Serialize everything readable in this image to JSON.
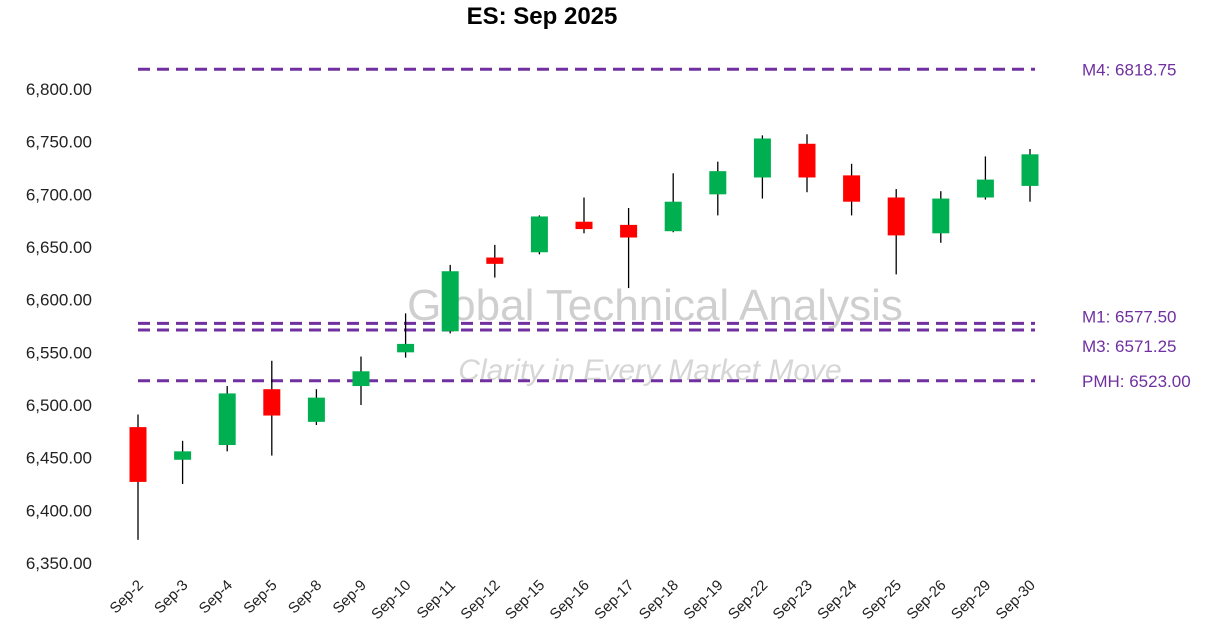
{
  "chart_data": {
    "type": "candlestick",
    "title": "ES: Sep 2025",
    "ylim": [
      6350,
      6830
    ],
    "yticks": [
      6350,
      6400,
      6450,
      6500,
      6550,
      6600,
      6650,
      6700,
      6750,
      6800
    ],
    "ytick_labels": [
      "6,350.00",
      "6,400.00",
      "6,450.00",
      "6,500.00",
      "6,550.00",
      "6,600.00",
      "6,650.00",
      "6,700.00",
      "6,750.00",
      "6,800.00"
    ],
    "grid": false,
    "categories": [
      "Sep-2",
      "Sep-3",
      "Sep-4",
      "Sep-5",
      "Sep-8",
      "Sep-9",
      "Sep-10",
      "Sep-11",
      "Sep-12",
      "Sep-15",
      "Sep-16",
      "Sep-17",
      "Sep-18",
      "Sep-19",
      "Sep-22",
      "Sep-23",
      "Sep-24",
      "Sep-25",
      "Sep-26",
      "Sep-29",
      "Sep-30"
    ],
    "candles": [
      {
        "open": 6479,
        "high": 6491,
        "low": 6372,
        "close": 6427
      },
      {
        "open": 6448,
        "high": 6466,
        "low": 6425,
        "close": 6456
      },
      {
        "open": 6462,
        "high": 6518,
        "low": 6456,
        "close": 6511
      },
      {
        "open": 6515,
        "high": 6542,
        "low": 6452,
        "close": 6490
      },
      {
        "open": 6484,
        "high": 6515,
        "low": 6481,
        "close": 6507
      },
      {
        "open": 6518,
        "high": 6546,
        "low": 6500,
        "close": 6532
      },
      {
        "open": 6550,
        "high": 6587,
        "low": 6545,
        "close": 6558
      },
      {
        "open": 6570,
        "high": 6633,
        "low": 6568,
        "close": 6627
      },
      {
        "open": 6640,
        "high": 6652,
        "low": 6621,
        "close": 6634
      },
      {
        "open": 6645,
        "high": 6680,
        "low": 6643,
        "close": 6679
      },
      {
        "open": 6674,
        "high": 6697,
        "low": 6663,
        "close": 6667
      },
      {
        "open": 6671,
        "high": 6687,
        "low": 6611,
        "close": 6659
      },
      {
        "open": 6665,
        "high": 6720,
        "low": 6664,
        "close": 6693
      },
      {
        "open": 6700,
        "high": 6731,
        "low": 6680,
        "close": 6722
      },
      {
        "open": 6716,
        "high": 6756,
        "low": 6696,
        "close": 6753
      },
      {
        "open": 6748,
        "high": 6757,
        "low": 6702,
        "close": 6716
      },
      {
        "open": 6718,
        "high": 6729,
        "low": 6680,
        "close": 6693
      },
      {
        "open": 6697,
        "high": 6705,
        "low": 6624,
        "close": 6661
      },
      {
        "open": 6663,
        "high": 6703,
        "low": 6654,
        "close": 6696
      },
      {
        "open": 6697,
        "high": 6736,
        "low": 6695,
        "close": 6714
      },
      {
        "open": 6708,
        "high": 6743,
        "low": 6693,
        "close": 6738
      }
    ],
    "reference_lines": [
      {
        "label": "M4: 6818.75",
        "value": 6818.75
      },
      {
        "label": "M1: 6577.50",
        "value": 6577.5
      },
      {
        "label": "M3: 6571.25",
        "value": 6571.25
      },
      {
        "label": "PMH: 6523.00",
        "value": 6523.0
      }
    ],
    "watermark": {
      "text": "Global Technical Analysis",
      "subtext": "Clarity in Every Market Move"
    },
    "colors": {
      "up": "#00b050",
      "down": "#ff0000",
      "wick": "#000000",
      "reference": "#7030a0"
    }
  }
}
